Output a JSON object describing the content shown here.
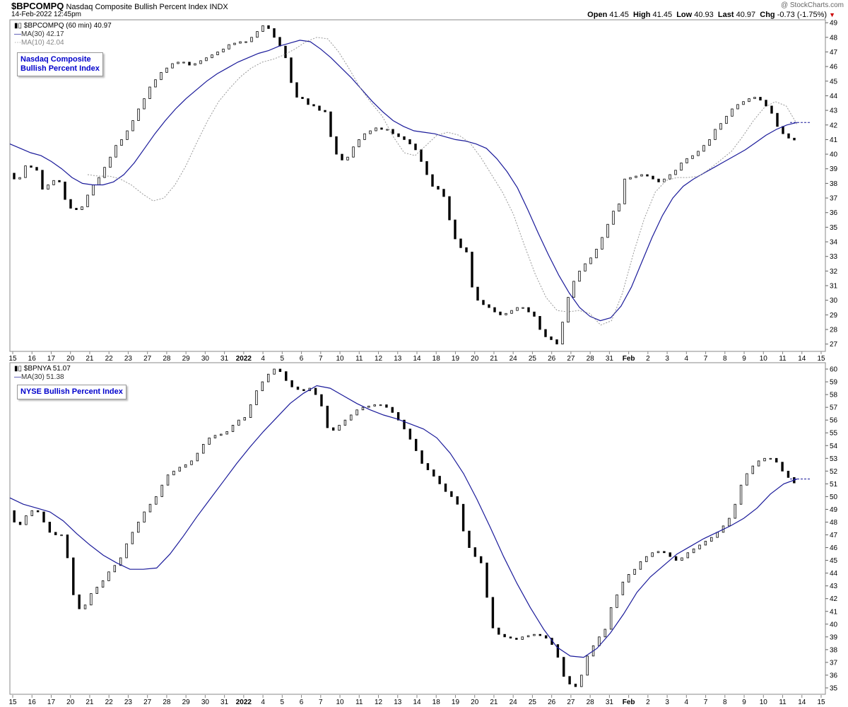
{
  "header": {
    "symbol": "$BPCOMPQ",
    "name": "Nasdaq Composite Bullish Percent Index",
    "exchange": "INDX",
    "timestamp": "14-Feb-2022 12:45pm",
    "brand": "@ StockCharts.com",
    "quote": {
      "open_label": "Open",
      "open": "41.45",
      "high_label": "High",
      "high": "41.45",
      "low_label": "Low",
      "low": "40.93",
      "last_label": "Last",
      "last": "40.97",
      "chg_label": "Chg",
      "chg": "-0.73 (-1.75%)"
    }
  },
  "colors": {
    "ma30": "#1a1a9a",
    "ma10": "#999999",
    "price": "#000000",
    "box_text": "#0000cc",
    "down": "#cc0000"
  },
  "x_axis": {
    "labels": [
      "15",
      "16",
      "17",
      "20",
      "21",
      "22",
      "23",
      "27",
      "28",
      "29",
      "30",
      "31",
      "2022",
      "4",
      "5",
      "6",
      "7",
      "10",
      "11",
      "12",
      "13",
      "14",
      "18",
      "19",
      "20",
      "21",
      "24",
      "25",
      "26",
      "27",
      "28",
      "31",
      "Feb",
      "2",
      "3",
      "4",
      "7",
      "8",
      "9",
      "10",
      "11",
      "14",
      "15"
    ],
    "bold": [
      "2022",
      "Feb"
    ]
  },
  "chart_data": [
    {
      "type": "line",
      "name": "upper",
      "legend": [
        {
          "label": "$BPCOMPQ (60 min) 40.97",
          "icon": "candle"
        },
        {
          "label": "MA(30) 42.17",
          "icon": "solid-line"
        },
        {
          "label": "MA(10) 42.04",
          "icon": "dotted-line"
        }
      ],
      "box_text": [
        "Nasdaq Composite",
        "Bullish Percent Index"
      ],
      "ylim": [
        26.5,
        49.2
      ],
      "yticks": [
        27,
        28,
        29,
        30,
        31,
        32,
        33,
        34,
        35,
        36,
        37,
        38,
        39,
        40,
        41,
        42,
        43,
        44,
        45,
        46,
        47,
        48,
        49
      ],
      "last_value": 40.97,
      "ma30_last": 42.17,
      "ma10_last": 42.04,
      "price_series": [
        38.7,
        38.3,
        38.4,
        39.2,
        39.1,
        38.9,
        37.6,
        37.9,
        38.2,
        38.1,
        36.9,
        36.3,
        36.2,
        36.4,
        37.2,
        37.9,
        38.4,
        39.1,
        39.8,
        40.6,
        41.0,
        41.6,
        42.3,
        43.1,
        43.8,
        44.6,
        45.1,
        45.6,
        45.9,
        46.2,
        46.3,
        46.3,
        46.1,
        46.2,
        46.4,
        46.6,
        46.8,
        47.0,
        47.2,
        47.5,
        47.6,
        47.7,
        47.7,
        48.0,
        48.4,
        48.8,
        48.6,
        48.0,
        47.4,
        46.6,
        44.9,
        43.9,
        43.8,
        43.4,
        43.3,
        43.0,
        42.9,
        41.2,
        40.0,
        39.6,
        39.8,
        40.5,
        41.0,
        41.4,
        41.6,
        41.8,
        41.7,
        41.7,
        41.4,
        41.2,
        41.0,
        40.7,
        40.3,
        39.5,
        38.6,
        37.8,
        37.6,
        37.1,
        35.5,
        34.2,
        33.6,
        33.3,
        30.9,
        30.0,
        29.7,
        29.5,
        29.2,
        29.0,
        29.1,
        29.3,
        29.5,
        29.5,
        29.2,
        28.9,
        28.0,
        27.5,
        27.3,
        27.0,
        28.5,
        30.2,
        31.3,
        32.0,
        32.5,
        32.9,
        33.5,
        34.3,
        35.2,
        36.1,
        36.6,
        38.3,
        38.4,
        38.5,
        38.6,
        38.5,
        38.3,
        38.1,
        38.3,
        38.6,
        38.9,
        39.4,
        39.7,
        39.9,
        40.2,
        40.6,
        41.0,
        41.7,
        42.1,
        42.6,
        43.1,
        43.4,
        43.6,
        43.8,
        43.9,
        43.7,
        43.3,
        42.8,
        41.9,
        41.4,
        41.1,
        40.97
      ],
      "ma30_series": [
        40.7,
        40.4,
        40.1,
        39.9,
        39.5,
        39.0,
        38.4,
        38.0,
        37.9,
        37.9,
        38.1,
        38.6,
        39.4,
        40.4,
        41.4,
        42.3,
        43.1,
        43.8,
        44.4,
        45.0,
        45.5,
        45.9,
        46.3,
        46.6,
        46.9,
        47.1,
        47.4,
        47.6,
        47.8,
        47.7,
        47.2,
        46.6,
        45.9,
        45.2,
        44.4,
        43.6,
        42.9,
        42.3,
        41.9,
        41.6,
        41.5,
        41.4,
        41.2,
        41.0,
        40.9,
        40.7,
        40.4,
        39.7,
        38.8,
        37.7,
        36.2,
        34.6,
        33.1,
        31.7,
        30.5,
        29.5,
        28.9,
        28.6,
        28.8,
        29.6,
        30.9,
        32.6,
        34.3,
        35.8,
        37.0,
        37.8,
        38.3,
        38.7,
        39.1,
        39.5,
        39.9,
        40.3,
        40.8,
        41.3,
        41.7,
        42.0,
        42.17
      ],
      "ma10_series": [
        38.6,
        38.5,
        38.5,
        38.3,
        37.9,
        37.3,
        36.8,
        37.0,
        37.9,
        39.2,
        40.8,
        42.3,
        43.6,
        44.5,
        45.3,
        45.9,
        46.3,
        46.5,
        46.8,
        47.2,
        47.7,
        48.0,
        47.9,
        47.0,
        45.8,
        44.5,
        43.5,
        42.6,
        41.2,
        40.1,
        39.9,
        40.6,
        41.3,
        41.5,
        41.3,
        40.8,
        39.8,
        38.6,
        37.4,
        35.9,
        33.8,
        31.8,
        30.2,
        29.3,
        29.2,
        29.3,
        29.1,
        28.3,
        28.6,
        30.5,
        33.2,
        35.6,
        37.4,
        38.2,
        38.4,
        38.4,
        38.5,
        39.0,
        39.6,
        40.2,
        41.2,
        42.3,
        43.2,
        43.6,
        43.3,
        42.04
      ]
    },
    {
      "type": "line",
      "name": "lower",
      "legend": [
        {
          "label": "$BPNYA 51.07",
          "icon": "candle"
        },
        {
          "label": "MA(30) 51.38",
          "icon": "solid-line"
        }
      ],
      "box_text": [
        "NYSE Bullish Percent Index"
      ],
      "ylim": [
        34.5,
        60.5
      ],
      "yticks": [
        35,
        36,
        37,
        38,
        39,
        40,
        41,
        42,
        43,
        44,
        45,
        46,
        47,
        48,
        49,
        50,
        51,
        52,
        53,
        54,
        55,
        56,
        57,
        58,
        59,
        60
      ],
      "last_value": 51.07,
      "ma30_last": 51.38,
      "price_series": [
        48.9,
        48.0,
        47.8,
        48.5,
        48.9,
        48.8,
        48.0,
        47.2,
        47.0,
        47.0,
        45.2,
        42.3,
        41.2,
        41.5,
        42.4,
        42.9,
        43.4,
        44.1,
        44.6,
        45.2,
        46.3,
        47.2,
        48.0,
        48.8,
        49.4,
        50.0,
        50.9,
        51.7,
        52.0,
        52.3,
        52.5,
        52.8,
        53.4,
        54.1,
        54.6,
        54.8,
        54.9,
        55.1,
        55.6,
        56.0,
        56.2,
        57.2,
        58.3,
        59.0,
        59.6,
        60.0,
        59.8,
        59.1,
        58.6,
        58.4,
        58.3,
        58.5,
        58.0,
        57.1,
        55.4,
        55.2,
        55.6,
        56.0,
        56.4,
        56.8,
        57.0,
        57.1,
        57.2,
        57.2,
        57.0,
        56.6,
        56.0,
        55.3,
        54.5,
        53.6,
        52.6,
        52.1,
        51.6,
        51.0,
        50.4,
        50.0,
        49.4,
        47.3,
        46.0,
        45.3,
        44.8,
        42.1,
        39.7,
        39.2,
        39.0,
        38.9,
        38.8,
        39.0,
        39.1,
        39.2,
        39.1,
        38.9,
        38.4,
        37.4,
        35.9,
        35.3,
        35.1,
        36.0,
        37.5,
        38.3,
        39.0,
        39.6,
        41.3,
        42.3,
        43.3,
        43.9,
        44.3,
        44.9,
        45.3,
        45.6,
        45.7,
        45.6,
        45.3,
        45.0,
        45.2,
        45.6,
        45.9,
        46.2,
        46.5,
        46.8,
        47.2,
        47.7,
        48.3,
        49.4,
        50.9,
        51.8,
        52.4,
        52.8,
        53.0,
        53.0,
        52.7,
        52.0,
        51.5,
        51.07
      ],
      "ma30_series": [
        49.9,
        49.4,
        49.1,
        48.8,
        48.1,
        47.1,
        46.2,
        45.4,
        44.8,
        44.3,
        44.3,
        44.4,
        45.5,
        46.9,
        48.4,
        49.8,
        51.2,
        52.6,
        53.9,
        55.1,
        56.2,
        57.3,
        58.1,
        58.7,
        58.5,
        57.9,
        57.3,
        56.8,
        56.4,
        56.1,
        55.7,
        55.3,
        54.6,
        53.4,
        51.8,
        49.8,
        47.6,
        45.3,
        43.2,
        41.3,
        39.6,
        38.2,
        37.5,
        37.4,
        38.1,
        39.3,
        40.8,
        42.5,
        43.7,
        44.6,
        45.5,
        46.1,
        46.7,
        47.2,
        47.7,
        48.3,
        49.1,
        50.2,
        51.0,
        51.38
      ]
    }
  ]
}
